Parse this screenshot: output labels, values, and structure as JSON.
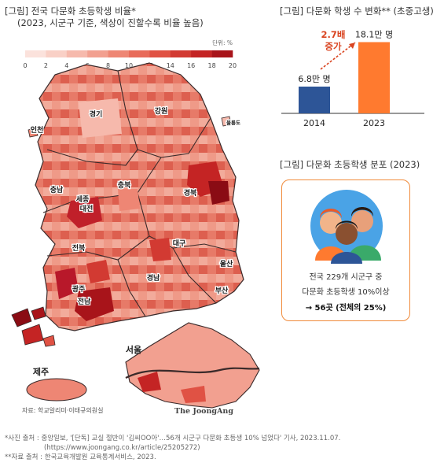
{
  "titles": {
    "map_title": "[그림] 전국 다문화 초등학생 비율*",
    "map_subtitle": "(2023, 시군구 기준, 색상이 진할수록 비율 높음)",
    "bar_title": "[그림] 다문화 학생 수 변화** (초중고생)",
    "dist_title": "[그림] 다문화 초등학생 분포 (2023)"
  },
  "chart_data": [
    {
      "type": "heatmap",
      "legend": {
        "unit_label": "단위: %",
        "ticks": [
          0,
          2,
          4,
          6,
          8,
          10,
          12,
          14,
          16,
          18,
          20
        ],
        "colors": [
          "#fbe2dc",
          "#f9d0c6",
          "#f6b9ac",
          "#f2a090",
          "#ee8674",
          "#e86b5a",
          "#e05244",
          "#d23a32",
          "#c42424",
          "#a8141a"
        ]
      },
      "region_labels": [
        "경기",
        "강원",
        "인천",
        "울릉도",
        "충북",
        "충남",
        "세종",
        "대전",
        "경북",
        "전북",
        "대구",
        "울산",
        "경남",
        "부산",
        "광주",
        "전남",
        "제주",
        "서울"
      ],
      "source": "자료: 학교알리미·이태규의원실",
      "credit": "The JoongAng",
      "colors": {
        "low": "#f4c8bd",
        "mid": "#e56a58",
        "high": "#c0202a",
        "max": "#8a0c14",
        "border": "#3a2a2a"
      }
    },
    {
      "type": "bar",
      "categories": [
        "2014",
        "2023"
      ],
      "values": [
        6.8,
        18.1
      ],
      "value_labels": [
        "6.8만 명",
        "18.1만 명"
      ],
      "ylim": [
        0,
        20
      ],
      "colors": [
        "#2d5597",
        "#ff7a2f"
      ],
      "annotation": {
        "line1": "2.7배",
        "line2": "증가",
        "color": "#d94420"
      }
    }
  ],
  "distribution": {
    "line1": "전국 229개 시군구 중",
    "line2": "다문화 초등학생 10%이상",
    "line3": "→ 56곳 (전체의 25%)",
    "accent": "#f08a3a",
    "illustration": "diverse-children-icon"
  },
  "footnotes": {
    "line1": "*사진 출처 : 중앙일보, '[단독] 교실 절반이 '김씨OO아'…56개 시군구 다문화 초등생 10% 넘었다' 기사, 2023.11.07.",
    "line2": "(https://www.joongang.co.kr/article/25205272)",
    "line3": "**자료 출처 : 한국교육개발원 교육통계서비스, 2023."
  }
}
